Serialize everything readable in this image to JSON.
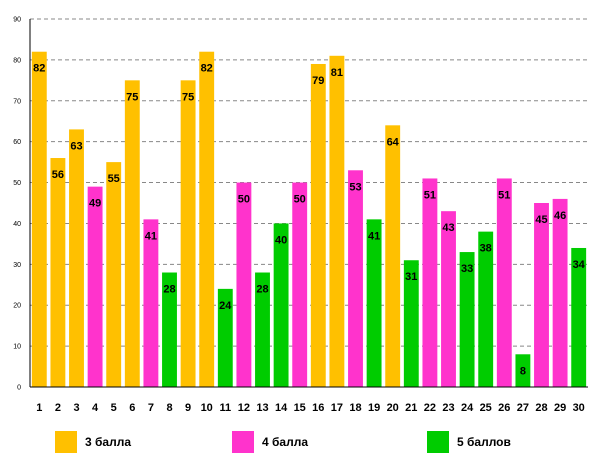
{
  "chart_data": {
    "type": "bar",
    "title": "",
    "xlabel": "",
    "ylabel": "",
    "ylim": [
      0,
      90
    ],
    "yticks": [
      0,
      10,
      20,
      30,
      40,
      50,
      60,
      70,
      80,
      90
    ],
    "grid": true,
    "legend_position": "bottom",
    "categories": [
      "1",
      "2",
      "3",
      "4",
      "5",
      "6",
      "7",
      "8",
      "9",
      "10",
      "11",
      "12",
      "13",
      "14",
      "15",
      "16",
      "17",
      "18",
      "19",
      "20",
      "21",
      "22",
      "23",
      "24",
      "25",
      "26",
      "27",
      "28",
      "29",
      "30"
    ],
    "values": [
      82,
      56,
      63,
      49,
      55,
      75,
      41,
      28,
      75,
      82,
      24,
      50,
      28,
      40,
      50,
      79,
      81,
      53,
      41,
      64,
      31,
      51,
      43,
      33,
      38,
      51,
      8,
      45,
      46,
      34
    ],
    "groups": [
      3,
      3,
      3,
      4,
      3,
      3,
      4,
      5,
      3,
      3,
      5,
      4,
      5,
      5,
      4,
      3,
      3,
      4,
      5,
      3,
      5,
      4,
      4,
      5,
      5,
      4,
      5,
      4,
      4,
      5
    ],
    "series": [
      {
        "key": 3,
        "name": "3 балла",
        "color": "#FFC000"
      },
      {
        "key": 4,
        "name": "4 балла",
        "color": "#FF33CC"
      },
      {
        "key": 5,
        "name": "5 баллов",
        "color": "#00CC00"
      }
    ]
  },
  "legend": {
    "item1": "3 балла",
    "item2": "4 балла",
    "item3": "5 баллов"
  }
}
